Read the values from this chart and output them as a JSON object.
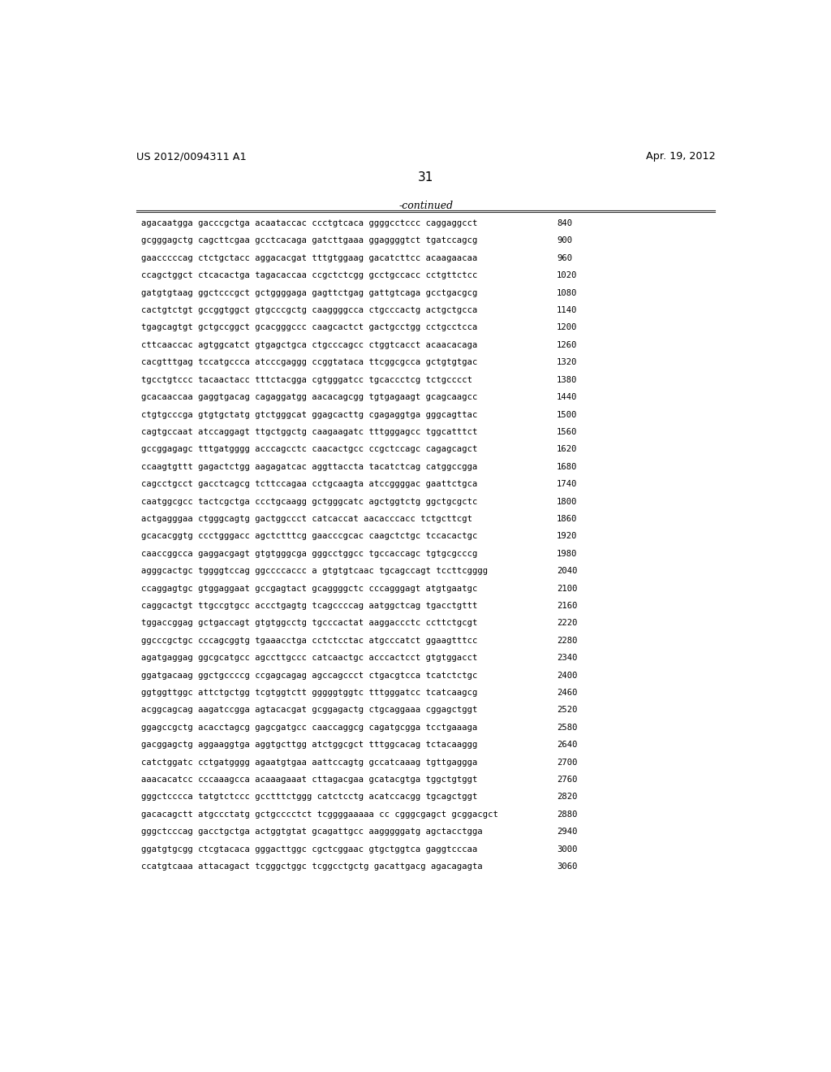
{
  "header_left": "US 2012/0094311 A1",
  "header_right": "Apr. 19, 2012",
  "page_number": "31",
  "continued_label": "-continued",
  "background_color": "#ffffff",
  "text_color": "#000000",
  "sequence_rows": [
    [
      "agacaatgga gacccgctga acaataccac ccctgtcaca ggggcctccc caggaggcct",
      "840"
    ],
    [
      "gcgggagctg cagcttcgaa gcctcacaga gatcttgaaa ggaggggtct tgatccagcg",
      "900"
    ],
    [
      "gaacccccag ctctgctacc aggacacgat tttgtggaag gacatcttcc acaagaacaa",
      "960"
    ],
    [
      "ccagctggct ctcacactga tagacaccaa ccgctctcgg gcctgccacc cctgttctcc",
      "1020"
    ],
    [
      "gatgtgtaag ggctcccgct gctggggaga gagttctgag gattgtcaga gcctgacgcg",
      "1080"
    ],
    [
      "cactgtctgt gccggtggct gtgcccgctg caaggggcca ctgcccactg actgctgcca",
      "1140"
    ],
    [
      "tgagcagtgt gctgccggct gcacgggccc caagcactct gactgcctgg cctgcctcca",
      "1200"
    ],
    [
      "cttcaaccac agtggcatct gtgagctgca ctgcccagcc ctggtcacct acaacacaga",
      "1260"
    ],
    [
      "cacgtttgag tccatgccca atcccgaggg ccggtataca ttcggcgcca gctgtgtgac",
      "1320"
    ],
    [
      "tgcctgtccc tacaactacc tttctacgga cgtgggatcc tgcaccctcg tctgcccct",
      "1380"
    ],
    [
      "gcacaaccaa gaggtgacag cagaggatgg aacacagcgg tgtgagaagt gcagcaagcc",
      "1440"
    ],
    [
      "ctgtgcccga gtgtgctatg gtctgggcat ggagcacttg cgagaggtga gggcagttac",
      "1500"
    ],
    [
      "cagtgccaat atccaggagt ttgctggctg caagaagatc tttgggagcc tggcatttct",
      "1560"
    ],
    [
      "gccggagagc tttgatgggg acccagcctc caacactgcc ccgctccagc cagagcagct",
      "1620"
    ],
    [
      "ccaagtgttt gagactctgg aagagatcac aggttaccta tacatctcag catggccgga",
      "1680"
    ],
    [
      "cagcctgcct gacctcagcg tcttccagaa cctgcaagta atccggggac gaattctgca",
      "1740"
    ],
    [
      "caatggcgcc tactcgctga ccctgcaagg gctgggcatc agctggtctg ggctgcgctc",
      "1800"
    ],
    [
      "actgagggaa ctgggcagtg gactggccct catcaccat aacacccacc tctgcttcgt",
      "1860"
    ],
    [
      "gcacacggtg ccctgggacc agctctttcg gaacccgcac caagctctgc tccacactgc",
      "1920"
    ],
    [
      "caaccggcca gaggacgagt gtgtgggcga gggcctggcc tgccaccagc tgtgcgcccg",
      "1980"
    ],
    [
      "agggcactgc tggggtccag ggccccaccc a gtgtgtcaac tgcagccagt tccttcgggg",
      "2040"
    ],
    [
      "ccaggagtgc gtggaggaat gccgagtact gcaggggctc cccagggagt atgtgaatgc",
      "2100"
    ],
    [
      "caggcactgt ttgccgtgcc accctgagtg tcagccccag aatggctcag tgacctgttt",
      "2160"
    ],
    [
      "tggaccggag gctgaccagt gtgtggcctg tgcccactat aaggaccctc ccttctgcgt",
      "2220"
    ],
    [
      "ggcccgctgc cccagcggtg tgaaacctga cctctcctac atgcccatct ggaagtttcc",
      "2280"
    ],
    [
      "agatgaggag ggcgcatgcc agccttgccc catcaactgc acccactcct gtgtggacct",
      "2340"
    ],
    [
      "ggatgacaag ggctgccccg ccgagcagag agccagccct ctgacgtcca tcatctctgc",
      "2400"
    ],
    [
      "ggtggttggc attctgctgg tcgtggtctt gggggtggtc tttgggatcc tcatcaagcg",
      "2460"
    ],
    [
      "acggcagcag aagatccgga agtacacgat gcggagactg ctgcaggaaa cggagctggt",
      "2520"
    ],
    [
      "ggagccgctg acacctagcg gagcgatgcc caaccaggcg cagatgcgga tcctgaaaga",
      "2580"
    ],
    [
      "gacggagctg aggaaggtga aggtgcttgg atctggcgct tttggcacag tctacaaggg",
      "2640"
    ],
    [
      "catctggatc cctgatgggg agaatgtgaa aattccagtg gccatcaaag tgttgaggga",
      "2700"
    ],
    [
      "aaacacatcc cccaaagcca acaaagaaat cttagacgaa gcatacgtga tggctgtggt",
      "2760"
    ],
    [
      "gggctcccca tatgtctccc gcctttctggg catctcctg acatccacgg tgcagctggt",
      "2820"
    ],
    [
      "gacacagctt atgccctatg gctgcccctct tcggggaaaaa cc cgggcgagct gcggacgct",
      "2880"
    ],
    [
      "gggctcccag gacctgctga actggtgtat gcagattgcc aagggggatg agctacctgga",
      "2940"
    ],
    [
      "ggatgtgcgg ctcgtacaca gggacttggc cgctcggaac gtgctggtca gaggtcccaa",
      "3000"
    ],
    [
      "ccatgtcaaa attacagact tcgggctggc tcggcctgctg gacattgacg agacagagta",
      "3060"
    ]
  ]
}
